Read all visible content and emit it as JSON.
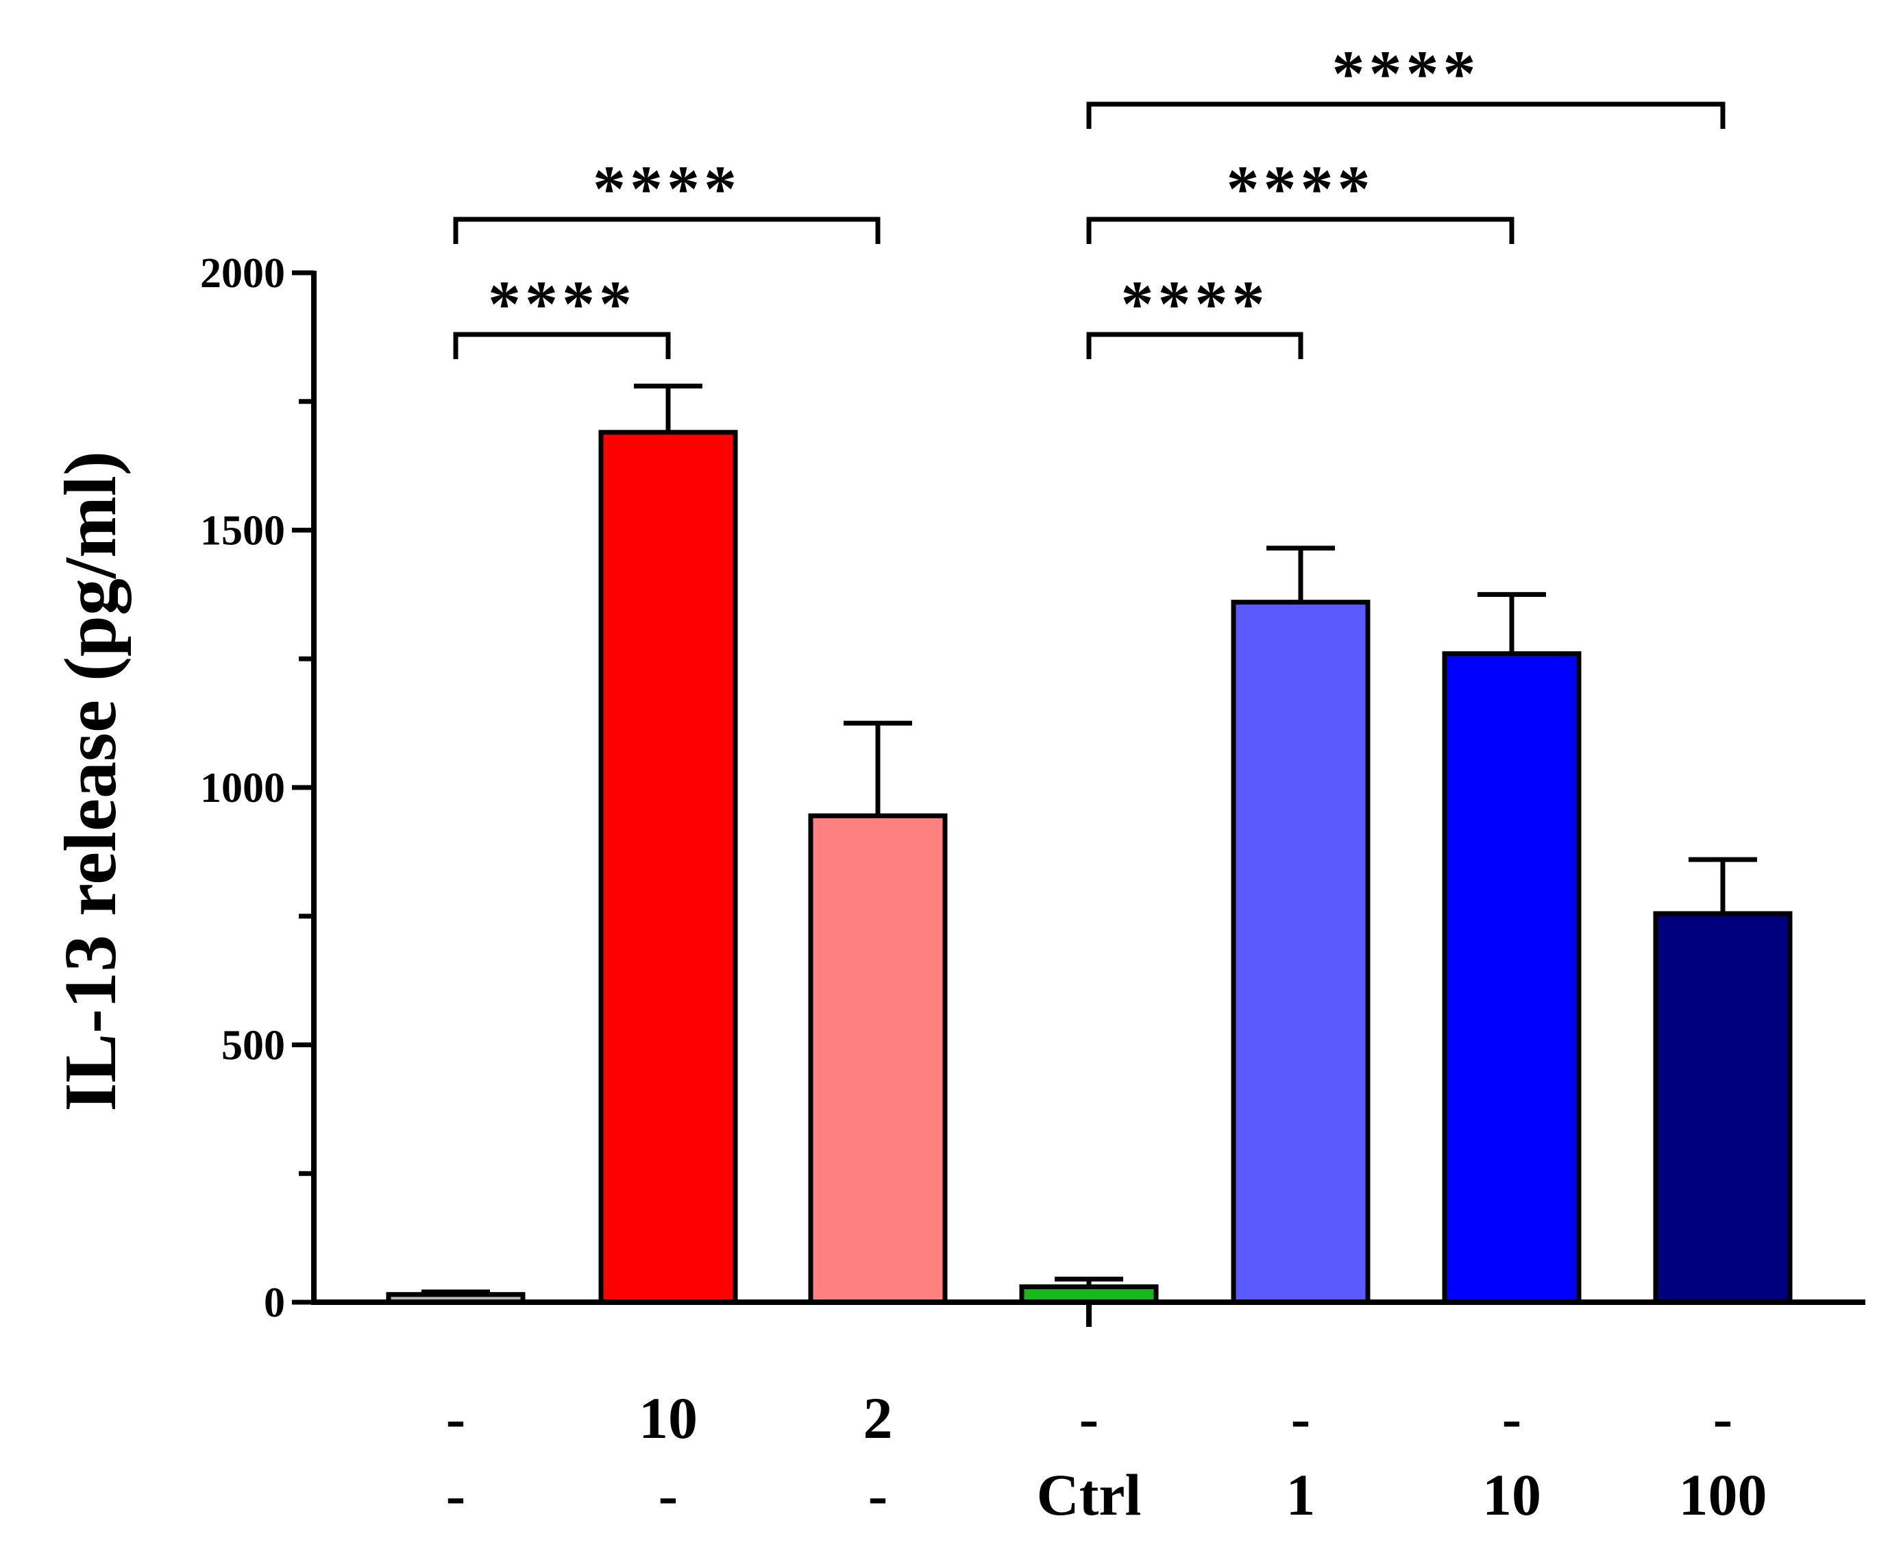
{
  "chart_data": {
    "type": "bar",
    "title": "",
    "xlabel": "",
    "ylabel": "IL-13 release (pg/ml)",
    "ylim": [
      0,
      2000
    ],
    "yticks": [
      "0",
      "500",
      "1000",
      "1500",
      "2000"
    ],
    "grid": false,
    "legend": "none",
    "categories_row1": [
      "-",
      "10",
      "2",
      "-",
      "-",
      "-",
      "-"
    ],
    "categories_row2": [
      "-",
      "-",
      "-",
      "Ctrl",
      "1",
      "10",
      "100"
    ],
    "values": [
      15,
      1690,
      945,
      30,
      1360,
      1260,
      755
    ],
    "errors": [
      5,
      90,
      180,
      15,
      105,
      115,
      105
    ],
    "colors": [
      "#b8b8b8",
      "#ff0000",
      "#ff8080",
      "#17b817",
      "#5a5aff",
      "#0000ff",
      "#00007f"
    ],
    "significance": [
      {
        "from": 0,
        "to": 1,
        "label": "****"
      },
      {
        "from": 0,
        "to": 2,
        "label": "****"
      },
      {
        "from": 3,
        "to": 4,
        "label": "****"
      },
      {
        "from": 3,
        "to": 5,
        "label": "****"
      },
      {
        "from": 3,
        "to": 6,
        "label": "****"
      }
    ]
  }
}
